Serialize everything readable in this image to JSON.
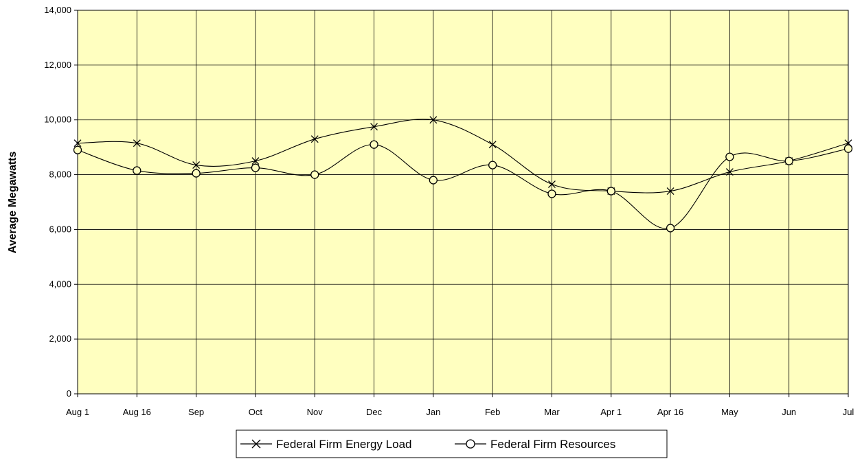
{
  "chart_data": {
    "type": "line",
    "title": "",
    "xlabel": "",
    "ylabel": "Average Megawatts",
    "ylim": [
      0,
      14000
    ],
    "yticks": [
      "0",
      "2,000",
      "4,000",
      "6,000",
      "8,000",
      "10,000",
      "12,000",
      "14,000"
    ],
    "categories": [
      "Aug 1",
      "Aug 16",
      "Sep",
      "Oct",
      "Nov",
      "Dec",
      "Jan",
      "Feb",
      "Mar",
      "Apr 1",
      "Apr 16",
      "May",
      "Jun",
      "Jul"
    ],
    "grid": true,
    "legend_position": "bottom",
    "plot_background": "#FFFFC0",
    "series": [
      {
        "name": "Federal Firm Energy Load",
        "marker": "x",
        "values": [
          9150,
          9150,
          8350,
          8500,
          9300,
          9750,
          10000,
          9100,
          7650,
          7400,
          7400,
          8100,
          8500,
          9150
        ]
      },
      {
        "name": "Federal Firm Resources",
        "marker": "circle",
        "values": [
          8900,
          8150,
          8050,
          8250,
          8000,
          9100,
          7800,
          8350,
          7300,
          7400,
          6050,
          8650,
          8500,
          8950
        ]
      }
    ]
  }
}
